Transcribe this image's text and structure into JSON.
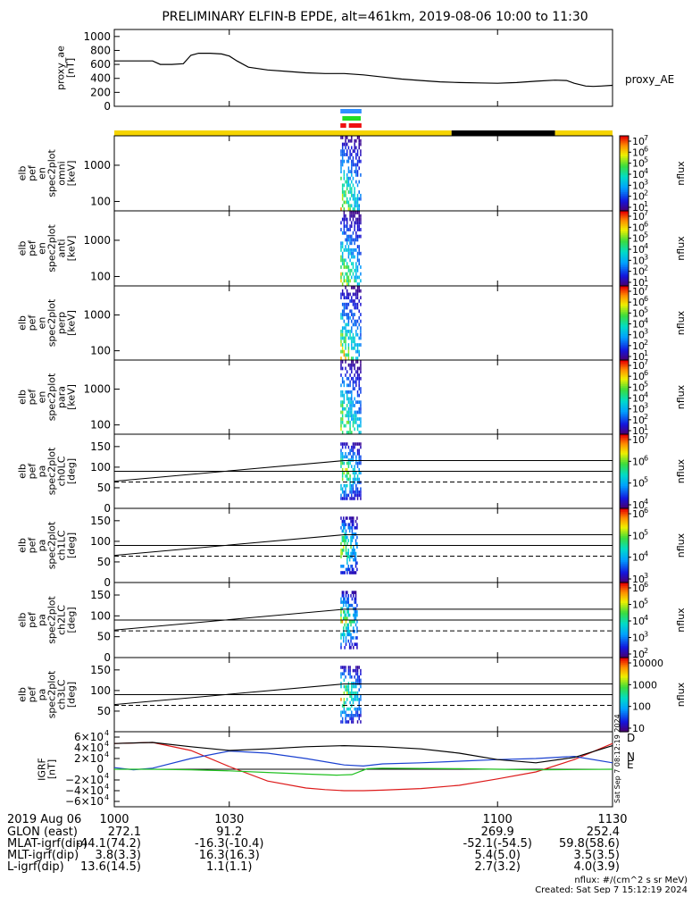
{
  "title": "PRELIMINARY ELFIN-B EPDE, alt=461km, 2019-08-06 10:00 to 11:30",
  "colors": {
    "sun": "#f5d400",
    "shadow": "#000000",
    "bar_blue": "#2f8fff",
    "bar_green": "#22dd22",
    "bar_red": "#ee1111",
    "gr_d": "#dd1a1a",
    "gr_n": "#1a40d0",
    "gr_e": "#20c020"
  },
  "chart_data": [
    {
      "type": "line",
      "panel": "proxy_ae",
      "ylabel": [
        "proxy_ae",
        "[nT]"
      ],
      "series_label": "proxy_AE",
      "ylim": [
        0,
        1100
      ],
      "yticks": [
        "1000",
        "800",
        "600",
        "400",
        "200",
        "0"
      ],
      "ytick_values": [
        1000,
        800,
        600,
        400,
        200,
        0
      ],
      "x": [
        1000,
        1005,
        1010,
        1012,
        1015,
        1018,
        1020,
        1022,
        1025,
        1028,
        1030,
        1032,
        1035,
        1040,
        1045,
        1050,
        1055,
        1058,
        1060,
        1065,
        1070,
        1075,
        1080,
        1085,
        1090,
        1095,
        1100,
        1105,
        1110,
        1115,
        1118,
        1120,
        1123,
        1125,
        1127,
        1130
      ],
      "y": [
        650,
        650,
        650,
        600,
        600,
        610,
        730,
        760,
        760,
        750,
        720,
        650,
        560,
        520,
        500,
        480,
        470,
        470,
        470,
        450,
        420,
        390,
        370,
        350,
        340,
        335,
        330,
        340,
        360,
        375,
        370,
        330,
        290,
        285,
        290,
        300
      ]
    },
    {
      "type": "bar",
      "panel": "sunlight-indicator",
      "segments": [
        {
          "state": "sun",
          "start": 1000,
          "end": 1088
        },
        {
          "state": "shadow",
          "start": 1088,
          "end": 1115
        },
        {
          "state": "sun",
          "start": 1115,
          "end": 1130
        }
      ],
      "science_bars": [
        {
          "color": "blue",
          "start": 1059.0,
          "end": 1064.5
        },
        {
          "color": "green",
          "start": 1059.5,
          "end": 1064.3
        },
        {
          "color": "red",
          "start": 1059.0,
          "end": 1060.5
        },
        {
          "color": "red",
          "start": 1061.2,
          "end": 1064.5
        }
      ]
    },
    {
      "type": "heatmap",
      "panel": "elb_pef_en_spec2plot_omni",
      "ylabel": [
        "elb",
        "pef",
        "en",
        "spec2plot",
        "omni",
        "[keV]"
      ],
      "scale": "log",
      "ylim": [
        55,
        6500
      ],
      "yticks": [
        "1000",
        "100"
      ],
      "ytick_values": [
        1000,
        100
      ],
      "zlabel": "nflux",
      "zticks": [
        "10",
        "10",
        "10",
        "10",
        "10",
        "10",
        "10"
      ],
      "zexp": [
        "7",
        "6",
        "5",
        "4",
        "3",
        "2",
        "1"
      ],
      "zlim": [
        1,
        7
      ],
      "time_range": [
        1059.0,
        1064.5
      ]
    },
    {
      "type": "heatmap",
      "panel": "elb_pef_en_spec2plot_anti",
      "ylabel": [
        "elb",
        "pef",
        "en",
        "spec2plot",
        "anti",
        "[keV]"
      ],
      "scale": "log",
      "ylim": [
        55,
        6500
      ],
      "yticks": [
        "1000",
        "100"
      ],
      "ytick_values": [
        1000,
        100
      ],
      "zlabel": "nflux",
      "zticks": [
        "10",
        "10",
        "10",
        "10",
        "10",
        "10",
        "10"
      ],
      "zexp": [
        "7",
        "6",
        "5",
        "4",
        "3",
        "2",
        "1"
      ],
      "zlim": [
        1,
        7
      ],
      "time_range": [
        1059.0,
        1064.5
      ]
    },
    {
      "type": "heatmap",
      "panel": "elb_pef_en_spec2plot_perp",
      "ylabel": [
        "elb",
        "pef",
        "en",
        "spec2plot",
        "perp",
        "[keV]"
      ],
      "scale": "log",
      "ylim": [
        55,
        6500
      ],
      "yticks": [
        "1000",
        "100"
      ],
      "ytick_values": [
        1000,
        100
      ],
      "zlabel": "nflux",
      "zticks": [
        "10",
        "10",
        "10",
        "10",
        "10",
        "10",
        "10"
      ],
      "zexp": [
        "7",
        "6",
        "5",
        "4",
        "3",
        "2",
        "1"
      ],
      "zlim": [
        1,
        7
      ],
      "time_range": [
        1059.0,
        1064.5
      ]
    },
    {
      "type": "heatmap",
      "panel": "elb_pef_en_spec2plot_para",
      "ylabel": [
        "elb",
        "pef",
        "en",
        "spec2plot",
        "para",
        "[keV]"
      ],
      "scale": "log",
      "ylim": [
        55,
        6500
      ],
      "yticks": [
        "1000",
        "100"
      ],
      "ytick_values": [
        1000,
        100
      ],
      "zlabel": "nflux",
      "zticks": [
        "10",
        "10",
        "10",
        "10",
        "10",
        "10",
        "10"
      ],
      "zexp": [
        "7",
        "6",
        "5",
        "4",
        "3",
        "2",
        "1"
      ],
      "zlim": [
        1,
        7
      ],
      "time_range": [
        1059.0,
        1064.5
      ]
    },
    {
      "type": "heatmap",
      "panel": "elb_pef_pa_spec2plot_ch0LC",
      "ylabel": [
        "elb",
        "pef",
        "pa",
        "spec2plot",
        "ch0LC",
        "[deg]"
      ],
      "ylim": [
        0,
        180
      ],
      "yticks": [
        "150",
        "100",
        "50",
        "0"
      ],
      "ytick_values": [
        150,
        100,
        50,
        0
      ],
      "zlabel": "nflux",
      "zticks": [
        "10",
        "10",
        "10",
        "10"
      ],
      "zexp": [
        "7",
        "6",
        "5",
        "4"
      ],
      "zlim": [
        3.7,
        7
      ],
      "lines": {
        "solid_start": [
          1000,
          66
        ],
        "solid_end": [
          1060,
          116
        ],
        "solid_flat": 116,
        "horizontal": 90,
        "dashed": 64
      },
      "time_range": [
        1059.0,
        1064.5
      ]
    },
    {
      "type": "heatmap",
      "panel": "elb_pef_pa_spec2plot_ch1LC",
      "ylabel": [
        "elb",
        "pef",
        "pa",
        "spec2plot",
        "ch1LC",
        "[deg]"
      ],
      "ylim": [
        0,
        180
      ],
      "yticks": [
        "150",
        "100",
        "50",
        "0"
      ],
      "ytick_values": [
        150,
        100,
        50,
        0
      ],
      "zlabel": "nflux",
      "zticks": [
        "10",
        "10",
        "10",
        "10"
      ],
      "zexp": [
        "6",
        "5",
        "4",
        "3"
      ],
      "zlim": [
        3,
        6.2
      ],
      "lines": {
        "solid_start": [
          1000,
          66
        ],
        "solid_end": [
          1060,
          116
        ],
        "solid_flat": 116,
        "horizontal": 90,
        "dashed": 64
      },
      "time_range": [
        1059.0,
        1063.5
      ]
    },
    {
      "type": "heatmap",
      "panel": "elb_pef_pa_spec2plot_ch2LC",
      "ylabel": [
        "elb",
        "pef",
        "pa",
        "spec2plot",
        "ch2LC",
        "[deg]"
      ],
      "ylim": [
        0,
        180
      ],
      "yticks": [
        "150",
        "100",
        "50",
        "0"
      ],
      "ytick_values": [
        150,
        100,
        50,
        0
      ],
      "zlabel": "nflux",
      "zticks": [
        "10",
        "10",
        "10",
        "10",
        "10"
      ],
      "zexp": [
        "6",
        "5",
        "4",
        "3",
        "2"
      ],
      "zlim": [
        2,
        6.2
      ],
      "lines": {
        "solid_start": [
          1000,
          66
        ],
        "solid_end": [
          1060,
          116
        ],
        "solid_flat": 116,
        "horizontal": 90,
        "dashed": 64
      },
      "time_range": [
        1059.0,
        1063.5
      ]
    },
    {
      "type": "heatmap",
      "panel": "elb_pef_pa_spec2plot_ch3LC",
      "ylabel": [
        "elb",
        "pef",
        "pa",
        "spec2plot",
        "ch3LC",
        "[deg]"
      ],
      "ylim": [
        0,
        180
      ],
      "yticks": [
        "150",
        "100",
        "50"
      ],
      "ytick_values": [
        150,
        100,
        50
      ],
      "zlabel": "nflux",
      "zticks": [
        "10000",
        "1000",
        "100",
        "10"
      ],
      "zlim": [
        1,
        4.3
      ],
      "lines": {
        "solid_start": [
          1000,
          66
        ],
        "solid_end": [
          1060,
          116
        ],
        "solid_flat": 116,
        "horizontal": 90,
        "dashed": 64
      },
      "time_range": [
        1059.0,
        1064.5
      ]
    },
    {
      "type": "line",
      "panel": "IGRF",
      "ylabel": [
        "IGRF",
        "[nT]"
      ],
      "ylim": [
        -70000,
        70000
      ],
      "yticks": [
        "6×10",
        "4×10",
        "2×10",
        "0",
        "−2×10",
        "−4×10",
        "−6×10"
      ],
      "ytick_values": [
        60000,
        40000,
        20000,
        0,
        -20000,
        -40000,
        -60000
      ],
      "ytick_exp": "4",
      "side_text": "Sat Sep  7 08:12:19 2024",
      "series": [
        {
          "name": "D",
          "color": "red",
          "x": [
            1000,
            1010,
            1020,
            1030,
            1040,
            1050,
            1055,
            1060,
            1065,
            1070,
            1080,
            1090,
            1100,
            1110,
            1120,
            1130
          ],
          "y": [
            48000,
            50000,
            35000,
            5000,
            -22000,
            -35000,
            -38000,
            -40000,
            -40000,
            -39000,
            -36000,
            -30000,
            -18000,
            -5000,
            18000,
            48000
          ]
        },
        {
          "name": "N",
          "color": "blue",
          "x": [
            1000,
            1005,
            1010,
            1020,
            1030,
            1040,
            1050,
            1060,
            1065,
            1070,
            1080,
            1090,
            1100,
            1110,
            1120,
            1130
          ],
          "y": [
            3000,
            -1000,
            2000,
            20000,
            34000,
            30000,
            20000,
            8000,
            6000,
            10000,
            12000,
            15000,
            18000,
            20000,
            24000,
            12000
          ]
        },
        {
          "name": "E",
          "color": "green",
          "x": [
            1000,
            1010,
            1020,
            1030,
            1040,
            1050,
            1058,
            1062,
            1066,
            1070,
            1080,
            1090,
            1100,
            1110,
            1120,
            1130
          ],
          "y": [
            0,
            0,
            -1000,
            -3000,
            -6000,
            -9000,
            -11000,
            -10000,
            1000,
            2000,
            1500,
            1000,
            0,
            -1000,
            -500,
            0
          ]
        },
        {
          "name": "",
          "color": "black",
          "x": [
            1000,
            1010,
            1020,
            1030,
            1040,
            1050,
            1060,
            1070,
            1080,
            1090,
            1100,
            1110,
            1120,
            1130
          ],
          "y": [
            48000,
            50000,
            42000,
            35000,
            38000,
            42000,
            44000,
            42000,
            38000,
            30000,
            18000,
            12000,
            22000,
            44000
          ]
        }
      ]
    }
  ],
  "x_axis": {
    "ticks": [
      "1000",
      "1030",
      "1100",
      "1130"
    ],
    "tick_values": [
      1000,
      1030,
      1100,
      1130
    ],
    "xlim": [
      1000,
      1130
    ]
  },
  "ephemeris": {
    "rows": [
      {
        "label": "2019 Aug 06",
        "values": []
      },
      {
        "label": "GLON (east)",
        "values": [
          "272.1",
          "91.2",
          "269.9",
          "252.4"
        ]
      },
      {
        "label": "MLAT-igrf(dip)",
        "values": [
          "-44.1(74.2)",
          "-16.3(-10.4)",
          "-52.1(-54.5)",
          "59.8(58.6)"
        ]
      },
      {
        "label": "MLT-igrf(dip)",
        "values": [
          "3.8(3.3)",
          "16.3(16.3)",
          "5.4(5.0)",
          "3.5(3.5)"
        ]
      },
      {
        "label": "L-igrf(dip)",
        "values": [
          "13.6(14.5)",
          "1.1(1.1)",
          "2.7(3.2)",
          "4.0(3.9)"
        ]
      }
    ]
  },
  "footer": {
    "units": "nflux: #/(cm^2 s sr MeV)",
    "created": "Created: Sat Sep  7 15:12:19 2024"
  }
}
